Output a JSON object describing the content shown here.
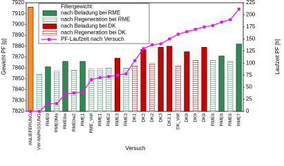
{
  "chart_data": {
    "type": "bar",
    "xlabel": "Versuch",
    "ylabel": "Gewicht PF [g]",
    "y2label": "Laufzeit PF [h]",
    "legend_title": "Filtergewicht:",
    "categories": [
      "ANLIEFERUNG",
      "VW-ANPASSUNG",
      "RME0",
      "RME0Ma",
      "RME0w",
      "RME0w2",
      "RME1",
      "RME_Voll",
      "RME1",
      "RME2",
      "RME3",
      "RME3",
      "DK1",
      "DK2",
      "DK2",
      "DK3",
      "DK3.1",
      "DK_Voll",
      "DK8",
      "DK9",
      "DK9",
      "RME6",
      "RME6",
      "RME6",
      "RME7"
    ],
    "series": [
      {
        "color": "#ff8c1a",
        "values": [
          7916,
          null,
          null,
          null,
          null,
          null,
          null,
          null,
          null,
          null,
          null,
          null,
          null,
          null,
          null,
          null,
          null,
          null,
          null,
          null,
          null,
          null,
          null,
          null,
          null
        ]
      },
      {
        "name": "nach Beladung bei RME",
        "color": "#2e8b57",
        "values": [
          null,
          null,
          7861,
          null,
          7866,
          null,
          7866,
          null,
          null,
          null,
          null,
          null,
          null,
          null,
          null,
          null,
          null,
          null,
          null,
          null,
          null,
          null,
          7871,
          null,
          7882
        ]
      },
      {
        "name": "nach Regeneration bei RME",
        "color": "#2e8b57",
        "hatch": true,
        "values": [
          null,
          7854,
          null,
          7857,
          null,
          7858,
          null,
          7859,
          7859,
          7860,
          null,
          7860,
          null,
          null,
          null,
          null,
          null,
          null,
          null,
          null,
          null,
          7867,
          null,
          7866,
          null
        ]
      },
      {
        "name": "nach Beladung bei DK",
        "color": "#cc0000",
        "values": [
          null,
          null,
          null,
          null,
          null,
          null,
          null,
          null,
          null,
          null,
          7869,
          null,
          null,
          7877,
          null,
          7879,
          7880,
          null,
          7875,
          null,
          7879,
          null,
          null,
          null,
          null
        ]
      },
      {
        "name": "nach Regeneration bei DK.",
        "color": "#cc0000",
        "hatch": true,
        "values": [
          null,
          null,
          null,
          null,
          null,
          null,
          null,
          null,
          null,
          null,
          null,
          null,
          7862,
          null,
          7864,
          null,
          null,
          7862,
          null,
          7867,
          null,
          null,
          null,
          null,
          null
        ]
      },
      {
        "name": "PF-Laufzeit nach Versuch",
        "type": "line",
        "axis": "y2",
        "color": "#ff00ff",
        "values": [
          0,
          0,
          16,
          16,
          36,
          38,
          40,
          66,
          70,
          72,
          75,
          78,
          105,
          130,
          138,
          140,
          150,
          160,
          165,
          170,
          175,
          178,
          185,
          190,
          212
        ]
      }
    ],
    "ylim": [
      7820,
      7920
    ],
    "yticks": [
      7820,
      7830,
      7840,
      7850,
      7860,
      7870,
      7880,
      7890,
      7900,
      7910,
      7920
    ],
    "y2lim": [
      0,
      225
    ],
    "y2ticks": [
      0,
      25,
      50,
      75,
      100,
      125,
      150,
      175,
      200,
      225
    ]
  }
}
